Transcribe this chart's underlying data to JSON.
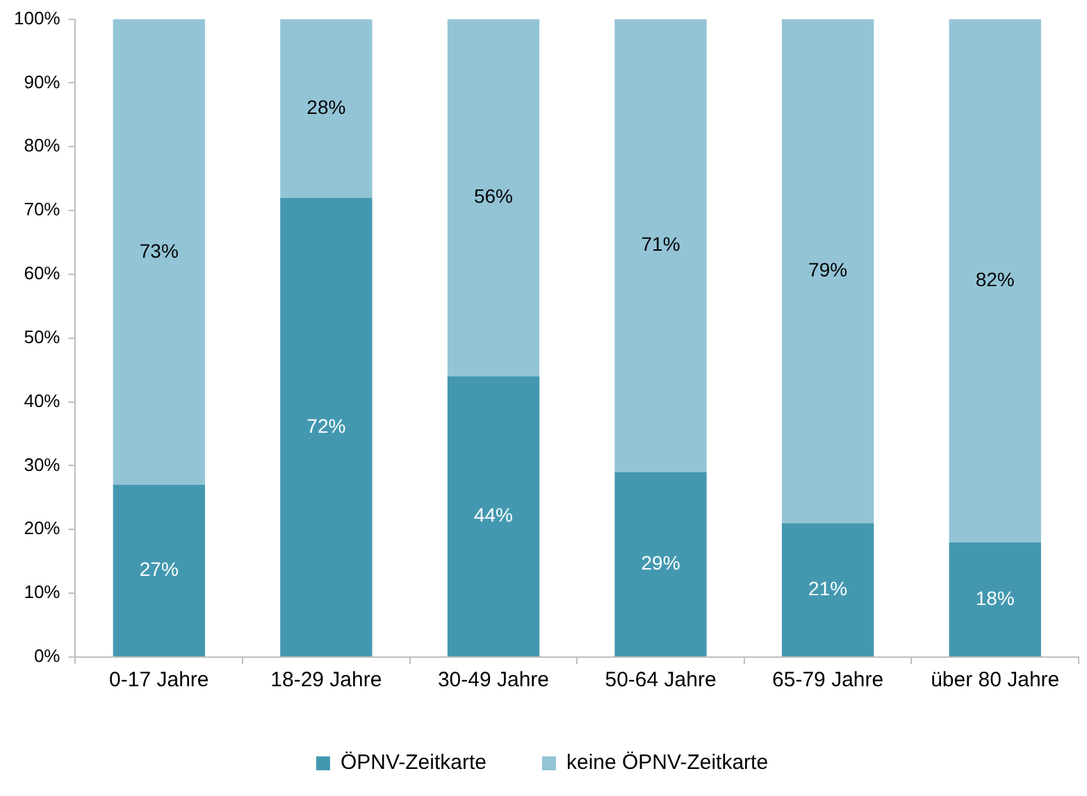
{
  "chart_data": {
    "type": "bar",
    "stacked": true,
    "categories": [
      "0-17 Jahre",
      "18-29 Jahre",
      "30-49 Jahre",
      "50-64 Jahre",
      "65-79 Jahre",
      "über 80 Jahre"
    ],
    "series": [
      {
        "name": "ÖPNV-Zeitkarte",
        "color": "#4398b0",
        "values": [
          27,
          72,
          44,
          29,
          21,
          18
        ],
        "value_labels": [
          "27%",
          "72%",
          "44%",
          "29%",
          "21%",
          "18%"
        ]
      },
      {
        "name": "keine ÖPNV-Zeitkarte",
        "color": "#93c4d6",
        "values": [
          73,
          28,
          56,
          71,
          79,
          82
        ],
        "value_labels": [
          "73%",
          "28%",
          "56%",
          "71%",
          "79%",
          "82%"
        ]
      }
    ],
    "ylim": [
      0,
      100
    ],
    "yticks": [
      {
        "value": 0,
        "label": "0%"
      },
      {
        "value": 10,
        "label": "10%"
      },
      {
        "value": 20,
        "label": "20%"
      },
      {
        "value": 30,
        "label": "30%"
      },
      {
        "value": 40,
        "label": "40%"
      },
      {
        "value": 50,
        "label": "50%"
      },
      {
        "value": 60,
        "label": "60%"
      },
      {
        "value": 70,
        "label": "70%"
      },
      {
        "value": 80,
        "label": "80%"
      },
      {
        "value": 90,
        "label": "90%"
      },
      {
        "value": 100,
        "label": "100%"
      }
    ],
    "grid": false,
    "legend": "bottom"
  }
}
